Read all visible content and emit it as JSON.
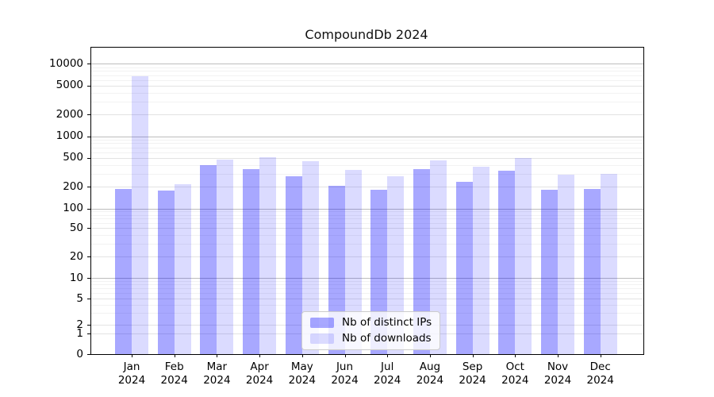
{
  "chart_data": {
    "type": "bar",
    "title": "CompoundDb 2024",
    "xlabel": "",
    "ylabel": "",
    "yscale": "symlog",
    "ylim": [
      0,
      16000
    ],
    "grid": "both",
    "legend_position": "lower center",
    "year": "2024",
    "categories": [
      "Jan",
      "Feb",
      "Mar",
      "Apr",
      "May",
      "Jun",
      "Jul",
      "Aug",
      "Sep",
      "Oct",
      "Nov",
      "Dec"
    ],
    "y_ticks": [
      0,
      1,
      2,
      5,
      10,
      20,
      50,
      100,
      200,
      500,
      1000,
      2000,
      5000,
      10000
    ],
    "y_tick_labels": [
      "0",
      "1",
      "2",
      "5",
      "10",
      "20",
      "50",
      "100",
      "200",
      "500",
      "1000",
      "2000",
      "5000",
      "10000"
    ],
    "series": [
      {
        "name": "Nb of distinct IPs",
        "color": "rgba(0,0,255,0.34)",
        "values": [
          185,
          178,
          400,
          355,
          280,
          205,
          183,
          355,
          232,
          330,
          181,
          188
        ]
      },
      {
        "name": "Nb of downloads",
        "color": "rgba(0,0,255,0.14)",
        "values": [
          6700,
          215,
          475,
          515,
          455,
          340,
          280,
          465,
          380,
          505,
          292,
          300
        ]
      }
    ]
  },
  "legend": {
    "items": [
      {
        "label": "Nb of distinct IPs",
        "color": "rgba(0,0,255,0.34)"
      },
      {
        "label": "Nb of downloads",
        "color": "rgba(0,0,255,0.14)"
      }
    ]
  },
  "colors": {
    "distinct_ips": "rgba(0,0,255,0.34)",
    "downloads": "rgba(0,0,255,0.14)",
    "grid_major": "#bdbdbd",
    "grid_minor": "#f2f2f2"
  }
}
